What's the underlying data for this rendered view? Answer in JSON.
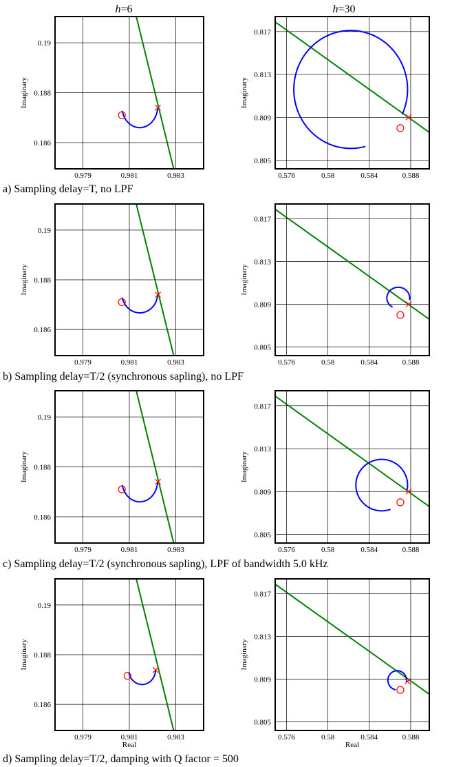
{
  "figure": {
    "column_titles": [
      {
        "var": "h",
        "rest": "=6"
      },
      {
        "var": "h",
        "rest": "=30"
      }
    ],
    "captions": [
      "a) Sampling delay=T, no LPF",
      "b) Sampling delay=T/2 (synchronous sapling), no LPF",
      "c) Sampling delay=T/2 (synchronous sapling), LPF of bandwidth 5.0 kHz",
      "d) Sampling delay=T/2, damping with Q factor = 500"
    ]
  },
  "chart_data": [
    {
      "type": "line",
      "row": 0,
      "col": 0,
      "xlabel": "",
      "ylabel": "Imaginary",
      "xlim": [
        0.9778,
        0.9842
      ],
      "ylim": [
        0.18495,
        0.19105
      ],
      "xticks": [
        0.979,
        0.981,
        0.983
      ],
      "xtick_labels": [
        "0.979",
        "0.981",
        "0.983"
      ],
      "yticks": [
        0.186,
        0.188,
        0.19
      ],
      "ytick_labels": [
        "0.186",
        "0.188",
        "0.19"
      ],
      "grid": true,
      "line": {
        "x": [
          0.98118,
          0.98295
        ],
        "y": [
          0.1915,
          0.1848
        ],
        "color": "#008000"
      },
      "arc": {
        "color": "#0000ff",
        "cx": 0.98145,
        "cy": 0.18745,
        "rx": 0.00077,
        "ry": 0.00085,
        "start_deg": 192,
        "end_deg": 356
      },
      "circle_marker": {
        "x": 0.98068,
        "y": 0.1871,
        "color": "#ff0000"
      },
      "x_marker": {
        "x": 0.98223,
        "y": 0.1874,
        "color": "#ff0000"
      }
    },
    {
      "type": "line",
      "row": 0,
      "col": 1,
      "xlabel": "",
      "ylabel": "Imaginary",
      "xlim": [
        0.5749,
        0.5898
      ],
      "ylim": [
        0.8042,
        0.8184
      ],
      "xticks": [
        0.576,
        0.58,
        0.584,
        0.588
      ],
      "xtick_labels": [
        "0.576",
        "0.58",
        "0.584",
        "0.588"
      ],
      "yticks": [
        0.805,
        0.809,
        0.813,
        0.817
      ],
      "ytick_labels": [
        "0.805",
        "0.809",
        "0.813",
        "0.817"
      ],
      "grid": true,
      "line": {
        "x": [
          0.5749,
          0.5898
        ],
        "y": [
          0.8179,
          0.8076
        ],
        "color": "#008000"
      },
      "arc": {
        "color": "#0000ff",
        "cx": 0.5822,
        "cy": 0.8116,
        "rx": 0.0055,
        "ry": 0.0055,
        "start_deg": -25,
        "end_deg": 285
      },
      "circle_marker": {
        "x": 0.587,
        "y": 0.808,
        "color": "#ff0000"
      },
      "x_marker": {
        "x": 0.5878,
        "y": 0.809,
        "color": "#ff0000"
      }
    },
    {
      "type": "line",
      "row": 1,
      "col": 0,
      "xlabel": "",
      "ylabel": "Imaginary",
      "xlim": [
        0.9778,
        0.9842
      ],
      "ylim": [
        0.18495,
        0.19105
      ],
      "xticks": [
        0.979,
        0.981,
        0.983
      ],
      "xtick_labels": [
        "0.979",
        "0.981",
        "0.983"
      ],
      "yticks": [
        0.186,
        0.188,
        0.19
      ],
      "ytick_labels": [
        "0.186",
        "0.188",
        "0.19"
      ],
      "grid": true,
      "line": {
        "x": [
          0.98118,
          0.98295
        ],
        "y": [
          0.1915,
          0.1848
        ],
        "color": "#008000"
      },
      "arc": {
        "color": "#0000ff",
        "cx": 0.98145,
        "cy": 0.18745,
        "rx": 0.00077,
        "ry": 0.00078,
        "start_deg": 192,
        "end_deg": 356
      },
      "circle_marker": {
        "x": 0.98068,
        "y": 0.1871,
        "color": "#ff0000"
      },
      "x_marker": {
        "x": 0.98223,
        "y": 0.1874,
        "color": "#ff0000"
      }
    },
    {
      "type": "line",
      "row": 1,
      "col": 1,
      "xlabel": "",
      "ylabel": "Imaginary",
      "xlim": [
        0.5749,
        0.5898
      ],
      "ylim": [
        0.8042,
        0.8184
      ],
      "xticks": [
        0.576,
        0.58,
        0.584,
        0.588
      ],
      "xtick_labels": [
        "0.576",
        "0.58",
        "0.584",
        "0.588"
      ],
      "yticks": [
        0.805,
        0.809,
        0.813,
        0.817
      ],
      "ytick_labels": [
        "0.805",
        "0.809",
        "0.813",
        "0.817"
      ],
      "grid": true,
      "line": {
        "x": [
          0.5749,
          0.5898
        ],
        "y": [
          0.8179,
          0.8076
        ],
        "color": "#008000"
      },
      "arc": {
        "color": "#0000ff",
        "cx": 0.5868,
        "cy": 0.8096,
        "rx": 0.0011,
        "ry": 0.001,
        "start_deg": -10,
        "end_deg": 240
      },
      "circle_marker": {
        "x": 0.587,
        "y": 0.808,
        "color": "#ff0000"
      },
      "x_marker": {
        "x": 0.5878,
        "y": 0.809,
        "color": "#ff0000"
      }
    },
    {
      "type": "line",
      "row": 2,
      "col": 0,
      "xlabel": "",
      "ylabel": "Imaginary",
      "xlim": [
        0.9778,
        0.9842
      ],
      "ylim": [
        0.18495,
        0.19105
      ],
      "xticks": [
        0.979,
        0.981,
        0.983
      ],
      "xtick_labels": [
        "0.979",
        "0.981",
        "0.983"
      ],
      "yticks": [
        0.186,
        0.188,
        0.19
      ],
      "ytick_labels": [
        "0.186",
        "0.188",
        "0.19"
      ],
      "grid": true,
      "line": {
        "x": [
          0.98118,
          0.98295
        ],
        "y": [
          0.1915,
          0.1848
        ],
        "color": "#008000"
      },
      "arc": {
        "color": "#0000ff",
        "cx": 0.98145,
        "cy": 0.18745,
        "rx": 0.00077,
        "ry": 0.00085,
        "start_deg": 192,
        "end_deg": 356
      },
      "circle_marker": {
        "x": 0.98068,
        "y": 0.1871,
        "color": "#ff0000"
      },
      "x_marker": {
        "x": 0.98223,
        "y": 0.1874,
        "color": "#ff0000"
      }
    },
    {
      "type": "line",
      "row": 2,
      "col": 1,
      "xlabel": "",
      "ylabel": "Imaginary",
      "xlim": [
        0.5749,
        0.5898
      ],
      "ylim": [
        0.8042,
        0.8184
      ],
      "xticks": [
        0.576,
        0.58,
        0.584,
        0.588
      ],
      "xtick_labels": [
        "0.576",
        "0.58",
        "0.584",
        "0.588"
      ],
      "yticks": [
        0.805,
        0.809,
        0.813,
        0.817
      ],
      "ytick_labels": [
        "0.805",
        "0.809",
        "0.813",
        "0.817"
      ],
      "grid": true,
      "line": {
        "x": [
          0.5749,
          0.5898
        ],
        "y": [
          0.8179,
          0.8076
        ],
        "color": "#008000"
      },
      "arc": {
        "color": "#0000ff",
        "cx": 0.5852,
        "cy": 0.8096,
        "rx": 0.0025,
        "ry": 0.0024,
        "start_deg": -10,
        "end_deg": 290
      },
      "circle_marker": {
        "x": 0.587,
        "y": 0.808,
        "color": "#ff0000"
      },
      "x_marker": {
        "x": 0.5878,
        "y": 0.809,
        "color": "#ff0000"
      }
    },
    {
      "type": "line",
      "row": 3,
      "col": 0,
      "xlabel": "Real",
      "ylabel": "Imaginary",
      "xlim": [
        0.9778,
        0.9842
      ],
      "ylim": [
        0.18495,
        0.19105
      ],
      "xticks": [
        0.979,
        0.981,
        0.983
      ],
      "xtick_labels": [
        "0.979",
        "0.981",
        "0.983"
      ],
      "yticks": [
        0.186,
        0.188,
        0.19
      ],
      "ytick_labels": [
        "0.186",
        "0.188",
        "0.19"
      ],
      "grid": true,
      "line": {
        "x": [
          0.98118,
          0.98295
        ],
        "y": [
          0.1915,
          0.1848
        ],
        "color": "#008000"
      },
      "arc": {
        "color": "#0000ff",
        "cx": 0.98155,
        "cy": 0.1874,
        "rx": 0.00058,
        "ry": 0.0006,
        "start_deg": 192,
        "end_deg": 356
      },
      "circle_marker": {
        "x": 0.98092,
        "y": 0.18715,
        "color": "#ff0000"
      },
      "x_marker": {
        "x": 0.98213,
        "y": 0.18738,
        "color": "#ff0000"
      }
    },
    {
      "type": "line",
      "row": 3,
      "col": 1,
      "xlabel": "Real",
      "ylabel": "Imaginary",
      "xlim": [
        0.5749,
        0.5898
      ],
      "ylim": [
        0.8042,
        0.8184
      ],
      "xticks": [
        0.576,
        0.58,
        0.584,
        0.588
      ],
      "xtick_labels": [
        "0.576",
        "0.58",
        "0.584",
        "0.588"
      ],
      "yticks": [
        0.805,
        0.809,
        0.813,
        0.817
      ],
      "ytick_labels": [
        "0.805",
        "0.809",
        "0.813",
        "0.817"
      ],
      "grid": true,
      "line": {
        "x": [
          0.5749,
          0.5898
        ],
        "y": [
          0.8179,
          0.8076
        ],
        "color": "#008000"
      },
      "arc": {
        "color": "#0000ff",
        "cx": 0.5867,
        "cy": 0.8089,
        "rx": 0.0009,
        "ry": 0.0009,
        "start_deg": -10,
        "end_deg": 260
      },
      "circle_marker": {
        "x": 0.587,
        "y": 0.808,
        "color": "#ff0000"
      },
      "x_marker": {
        "x": 0.5877,
        "y": 0.8088,
        "color": "#ff0000"
      }
    }
  ]
}
